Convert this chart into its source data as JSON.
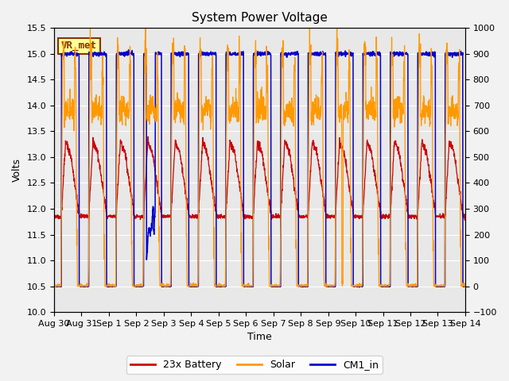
{
  "title": "System Power Voltage",
  "xlabel": "Time",
  "ylabel": "Volts",
  "ylim_left": [
    10.0,
    15.5
  ],
  "ylim_right": [
    -100,
    1000
  ],
  "yticks_left": [
    10.0,
    10.5,
    11.0,
    11.5,
    12.0,
    12.5,
    13.0,
    13.5,
    14.0,
    14.5,
    15.0,
    15.5
  ],
  "yticks_right": [
    -100,
    0,
    100,
    200,
    300,
    400,
    500,
    600,
    700,
    800,
    900,
    1000
  ],
  "xtick_labels": [
    "Aug 30",
    "Aug 31",
    "Sep 1",
    "Sep 2",
    "Sep 3",
    "Sep 4",
    "Sep 5",
    "Sep 6",
    "Sep 7",
    "Sep 8",
    "Sep 9",
    "Sep 10",
    "Sep 11",
    "Sep 12",
    "Sep 13",
    "Sep 14"
  ],
  "legend_labels": [
    "23x Battery",
    "Solar",
    "CM1_in"
  ],
  "legend_colors": [
    "#cc0000",
    "#ff9900",
    "#0000cc"
  ],
  "annotation_text": "VR_met",
  "annotation_facecolor": "#ffff99",
  "annotation_edgecolor": "#883300",
  "annotation_textcolor": "#883300",
  "plot_bgcolor": "#e8e8e8",
  "title_fontsize": 11,
  "axis_fontsize": 9,
  "tick_fontsize": 8,
  "legend_fontsize": 9
}
